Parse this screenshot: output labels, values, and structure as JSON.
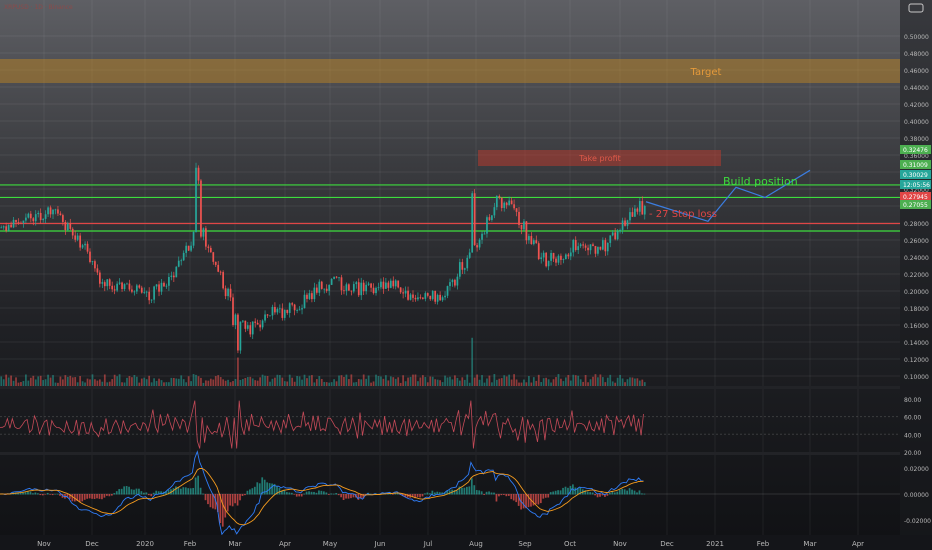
{
  "header": {
    "symbol_text": "XRPUSD · 1D · Binance"
  },
  "price_axis": {
    "ticks": [
      "0.10000",
      "0.12000",
      "0.14000",
      "0.16000",
      "0.18000",
      "0.20000",
      "0.22000",
      "0.24000",
      "0.26000",
      "0.28000",
      "0.30000",
      "0.32000",
      "0.34000",
      "0.36000",
      "0.38000",
      "0.40000",
      "0.42000",
      "0.44000",
      "0.46000",
      "0.48000",
      "0.50000"
    ],
    "badges": [
      {
        "text": "0.32476",
        "color": "#4caf50"
      },
      {
        "text": "0.31009",
        "color": "#4caf50"
      },
      {
        "text": "0.30029",
        "color": "#26a69a"
      },
      {
        "text": "12:05:56",
        "color": "#26a69a"
      },
      {
        "text": "0.27945",
        "color": "#e04646"
      },
      {
        "text": "0.27055",
        "color": "#4caf50"
      }
    ]
  },
  "time_axis": {
    "labels": [
      "Nov",
      "Dec",
      "2020",
      "Feb",
      "Mar",
      "Apr",
      "May",
      "Jun",
      "Jul",
      "Aug",
      "Sep",
      "Oct",
      "Nov",
      "Dec",
      "2021",
      "Feb",
      "Mar",
      "Apr"
    ]
  },
  "annotations": {
    "target": "Target",
    "stop_loss": "- 27 Stop loss",
    "build_position": "Build position",
    "zone_label": "Take profit"
  },
  "rsi_axis": {
    "ticks": [
      "20.00",
      "40.00",
      "60.00",
      "80.00"
    ]
  },
  "macd_axis": {
    "ticks": [
      "-0.02000",
      "0.00000",
      "0.02000"
    ]
  },
  "colors": {
    "up": "#26a69a",
    "down": "#ef5350",
    "green_line": "#3ddc3d",
    "red_line": "#e04646",
    "target_zone": "#c8891e",
    "rsi": "#c44a58",
    "macd": "#2f7cf6",
    "signal": "#f39a1e"
  },
  "chart_data": {
    "type": "candlestick",
    "title": "",
    "xlabel": "",
    "ylabel": "",
    "ylim": [
      0.09,
      0.5
    ],
    "close_path": [
      {
        "month": "Oct 2019",
        "price": 0.27
      },
      {
        "month": "Nov 2019",
        "price": 0.3
      },
      {
        "month": "Dec 2019",
        "price": 0.22
      },
      {
        "month": "Jan 2020",
        "price": 0.19
      },
      {
        "month": "Feb 2020",
        "price": 0.27
      },
      {
        "month": "Mar 2020",
        "price": 0.15
      },
      {
        "month": "Apr 2020",
        "price": 0.19
      },
      {
        "month": "May 2020",
        "price": 0.21
      },
      {
        "month": "Jun 2020",
        "price": 0.2
      },
      {
        "month": "Jul 2020",
        "price": 0.19
      },
      {
        "month": "Aug 2020",
        "price": 0.31
      },
      {
        "month": "Sep 2020",
        "price": 0.24
      },
      {
        "month": "Oct 2020",
        "price": 0.25
      },
      {
        "month": "Nov 2020",
        "price": 0.3
      }
    ],
    "levels": [
      {
        "price": 0.32476,
        "color": "green"
      },
      {
        "price": 0.31009,
        "color": "green"
      },
      {
        "price": 0.27945,
        "color": "red"
      },
      {
        "price": 0.27055,
        "color": "green"
      }
    ],
    "target_zone": [
      0.445,
      0.465
    ],
    "projection": [
      0.305,
      0.282,
      0.322,
      0.31,
      0.342
    ],
    "indicators": [
      "RSI",
      "MACD"
    ],
    "grid": true
  }
}
